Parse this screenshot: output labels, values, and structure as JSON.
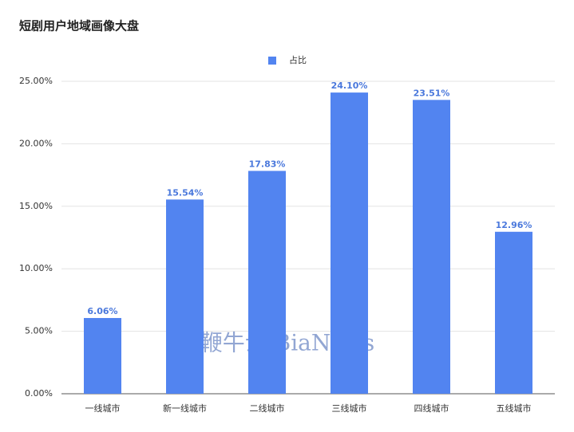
{
  "chart_data": {
    "type": "bar",
    "title": "短剧用户地域画像大盘",
    "categories": [
      "一线城市",
      "新一线城市",
      "二线城市",
      "三线城市",
      "四线城市",
      "五线城市"
    ],
    "series": [
      {
        "name": "占比",
        "color": "#5284f0",
        "values": [
          6.06,
          15.54,
          17.83,
          24.1,
          23.51,
          12.96
        ],
        "value_labels": [
          "6.06%",
          "15.54%",
          "17.83%",
          "24.10%",
          "23.51%",
          "12.96%"
        ]
      }
    ],
    "ylim": [
      0,
      25
    ],
    "yticks": [
      {
        "value": 0,
        "label": "0.00%"
      },
      {
        "value": 5,
        "label": "5.00%"
      },
      {
        "value": 10,
        "label": "10.00%"
      },
      {
        "value": 15,
        "label": "15.00%"
      },
      {
        "value": 20,
        "label": "20.00%"
      },
      {
        "value": 25,
        "label": "25.00%"
      }
    ],
    "grid": true,
    "legend": "top",
    "watermark": "鞭牛士 BiaNews"
  }
}
